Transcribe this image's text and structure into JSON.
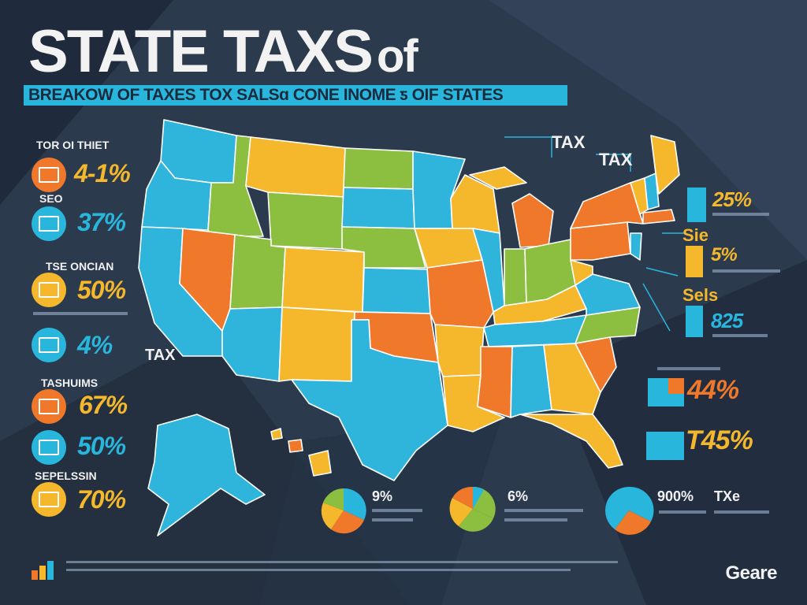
{
  "header": {
    "title_main": "STATE TAXS",
    "title_of": "of",
    "subtitle": "BREAKOW OF TAXES TOX SALSɑ CONE INOME ƽ OIF STATES"
  },
  "left_panel": [
    {
      "label": "TOR OI THIET",
      "value": "4-1%",
      "icon": "document-icon",
      "color": "#f0782a"
    },
    {
      "label": "SEO",
      "value": "37%",
      "icon": "calculator-icon",
      "color": "#29b6dd"
    },
    {
      "label": "TSE ONCIAN",
      "value": "50%",
      "icon": "register-icon",
      "color": "#f5b82c"
    },
    {
      "label": "",
      "value": "4%",
      "icon": "card-icon",
      "color": "#29b6dd"
    },
    {
      "label": "TASHUIMS",
      "value": "67%",
      "icon": "receipt-icon",
      "color": "#f0782a"
    },
    {
      "label": "",
      "value": "50%",
      "icon": "wallet-icon",
      "color": "#29b6dd"
    },
    {
      "label": "SEPELSSIN",
      "value": "70%",
      "icon": "ledger-icon",
      "color": "#f5b82c"
    }
  ],
  "map_labels": {
    "tax_west": "TAX",
    "tax_ne1": "TAX",
    "tax_ne2": "TAX"
  },
  "right_panel": [
    {
      "label": "",
      "value": "25%",
      "color": "#29b6dd"
    },
    {
      "label": "Sie",
      "value": "5%",
      "color": "#f5b82c"
    },
    {
      "label": "Sels",
      "value": "825",
      "color": "#29b6dd"
    },
    {
      "label": "",
      "value": "44%",
      "color": "#f0782a"
    },
    {
      "label": "",
      "value": "T45%",
      "color": "#f5b82c"
    }
  ],
  "pies": [
    {
      "label": "9%",
      "colors": [
        "#29b6dd",
        "#f0782a",
        "#f5b82c",
        "#8cbf3f"
      ]
    },
    {
      "label": "6%",
      "colors": [
        "#8cbf3f",
        "#f5b82c",
        "#f0782a",
        "#29b6dd"
      ]
    },
    {
      "label": "900%",
      "label2": "TXe",
      "colors": [
        "#29b6dd",
        "#f0782a",
        "#2c3a4e"
      ]
    }
  ],
  "footer": {
    "brand": "Geare"
  },
  "colors": {
    "cyan": "#29b6dd",
    "orange": "#f0782a",
    "yellow": "#f5b82c",
    "green": "#8cbf3f",
    "background": "#2c3a4e"
  }
}
